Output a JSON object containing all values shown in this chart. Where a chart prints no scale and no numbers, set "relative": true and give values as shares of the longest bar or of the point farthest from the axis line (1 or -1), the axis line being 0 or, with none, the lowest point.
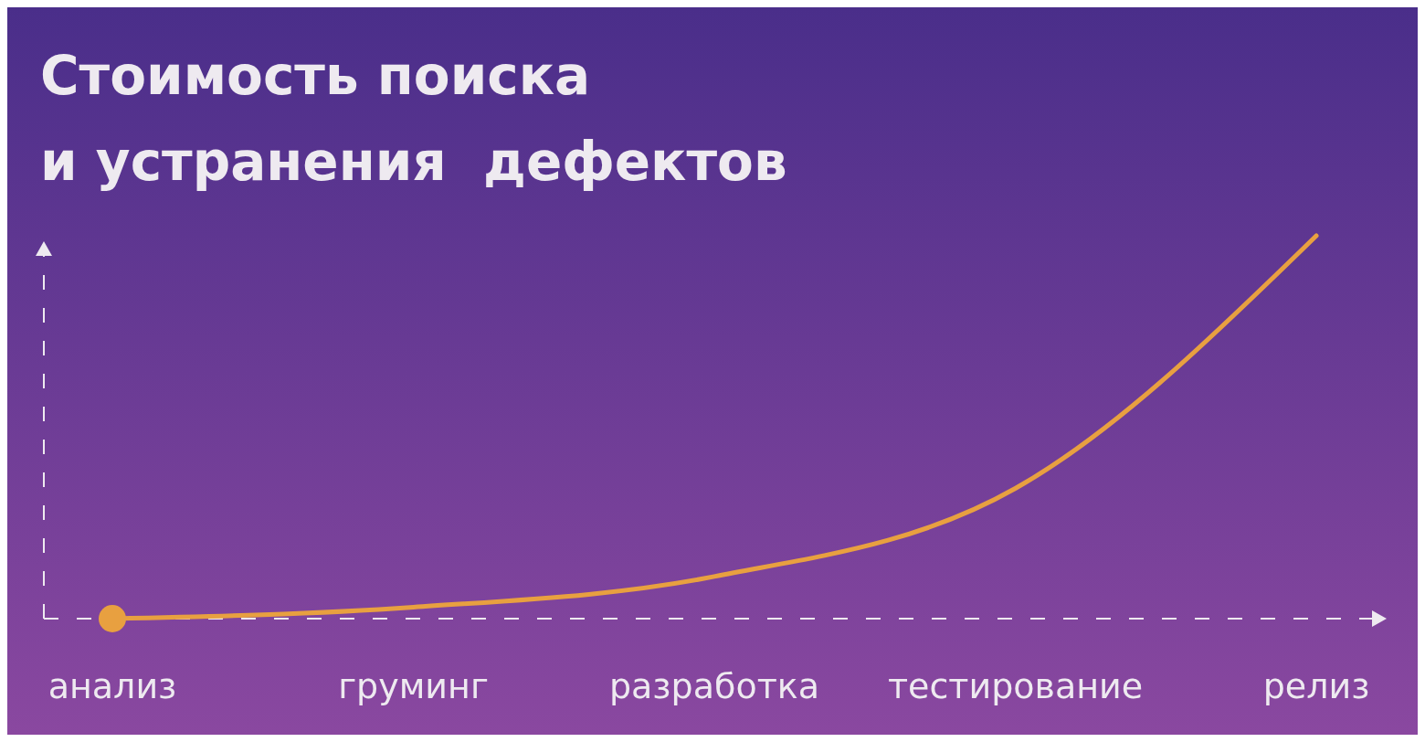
{
  "chart_data": {
    "type": "line",
    "title": "Стоимость поиска\nи устранения  дефектов",
    "relative": true,
    "categories": [
      "анализ",
      "груминг",
      "разработка",
      "тестирование",
      "релиз"
    ],
    "series": [
      {
        "color": "#e8a040",
        "values": [
          0,
          0.03,
          0.11,
          0.34,
          1
        ]
      }
    ],
    "line_style": "solid"
  }
}
